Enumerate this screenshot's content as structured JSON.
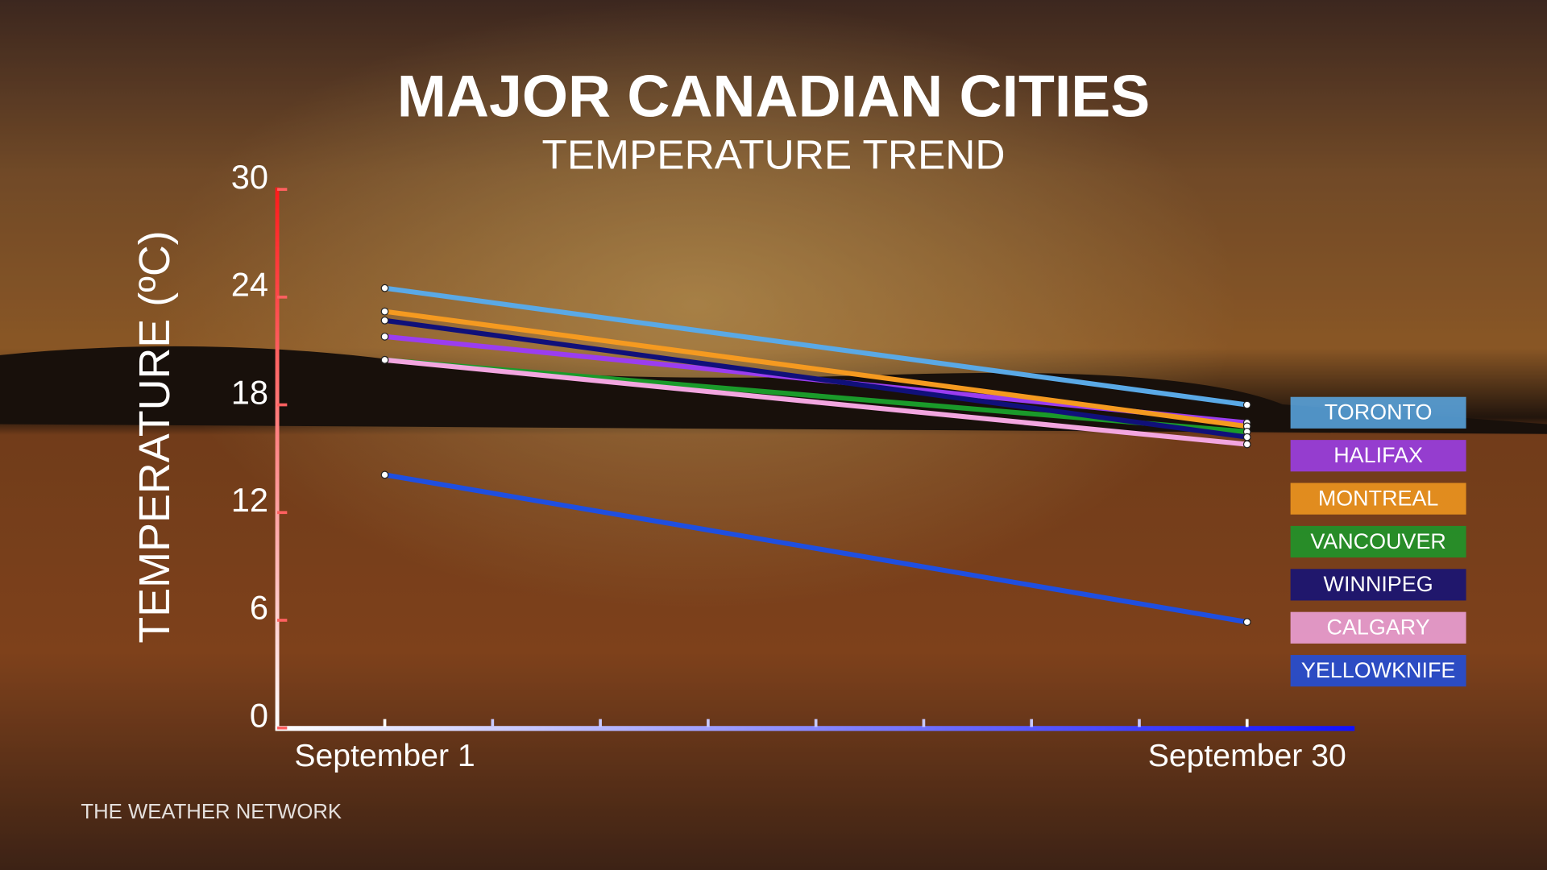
{
  "chart_data": {
    "type": "line",
    "title": "MAJOR CANADIAN CITIES",
    "subtitle": "TEMPERATURE TREND",
    "y_label": "TEMPERATURE (ºC)",
    "source": "THE WEATHER NETWORK",
    "categories": [
      "September 1",
      "September 30"
    ],
    "ylim": [
      0,
      30
    ],
    "yticks": [
      0,
      6,
      12,
      18,
      24,
      30
    ],
    "series": [
      {
        "name": "TORONTO",
        "color": "#5aa9e6",
        "values": [
          24.5,
          18
        ]
      },
      {
        "name": "HALIFAX",
        "color": "#9b3df0",
        "values": [
          21.8,
          17
        ]
      },
      {
        "name": "MONTREAL",
        "color": "#f59a20",
        "values": [
          23.2,
          16.8
        ]
      },
      {
        "name": "VANCOUVER",
        "color": "#1a9a2a",
        "values": [
          20.5,
          16.5
        ]
      },
      {
        "name": "WINNIPEG",
        "color": "#10107a",
        "values": [
          22.7,
          16.2
        ]
      },
      {
        "name": "CALGARY",
        "color": "#f2a6e0",
        "values": [
          20.5,
          15.8
        ]
      },
      {
        "name": "YELLOWKNIFE",
        "color": "#1f4fe0",
        "values": [
          14.1,
          5.9
        ]
      }
    ]
  }
}
